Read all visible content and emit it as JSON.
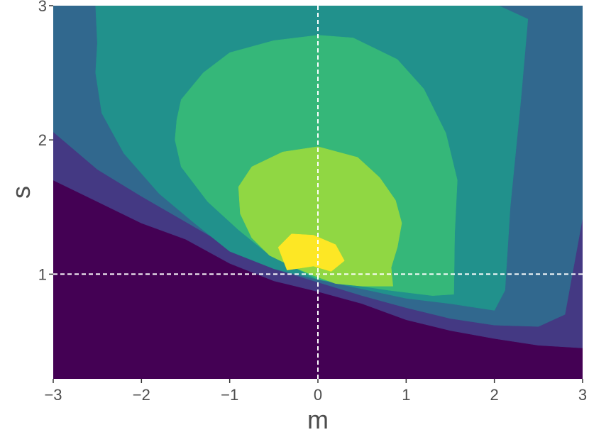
{
  "chart_data": {
    "type": "contour",
    "xlabel": "m",
    "ylabel": "s",
    "xlim": [
      -3,
      3
    ],
    "ylim": [
      0.22,
      3
    ],
    "x_ticks": [
      {
        "value": -3,
        "label": "−3"
      },
      {
        "value": -2,
        "label": "−2"
      },
      {
        "value": -1,
        "label": "−1"
      },
      {
        "value": 0,
        "label": "0"
      },
      {
        "value": 1,
        "label": "1"
      },
      {
        "value": 2,
        "label": "2"
      },
      {
        "value": 3,
        "label": "3"
      }
    ],
    "y_ticks": [
      {
        "value": 1,
        "label": "1"
      },
      {
        "value": 2,
        "label": "2"
      },
      {
        "value": 3,
        "label": "3"
      }
    ],
    "reference_lines": {
      "vertical_x": 0,
      "horizontal_y": 1,
      "style": "dashed",
      "color": "#ffffff"
    },
    "grid": false,
    "colormap": "viridis",
    "levels": [
      {
        "color": "#440154",
        "regions": [
          [
            [
              -3,
              0.22
            ],
            [
              3,
              0.22
            ],
            [
              3,
              3
            ],
            [
              -3,
              3
            ]
          ]
        ]
      },
      {
        "color": "#443983",
        "regions": [
          [
            [
              -3,
              1.7
            ],
            [
              -2.5,
              1.54
            ],
            [
              -2,
              1.38
            ],
            [
              -1.5,
              1.26
            ],
            [
              -1,
              1.08
            ],
            [
              -0.5,
              0.95
            ],
            [
              0,
              0.87
            ],
            [
              0.5,
              0.78
            ],
            [
              1,
              0.66
            ],
            [
              1.5,
              0.58
            ],
            [
              2,
              0.52
            ],
            [
              2.5,
              0.47
            ],
            [
              3,
              0.45
            ],
            [
              3,
              3
            ],
            [
              -3,
              3
            ]
          ]
        ]
      },
      {
        "color": "#31688e",
        "regions": [
          [
            [
              -3,
              2.06
            ],
            [
              -2.5,
              1.78
            ],
            [
              -2,
              1.58
            ],
            [
              -1.5,
              1.39
            ],
            [
              -1,
              1.2
            ],
            [
              -0.5,
              1.04
            ],
            [
              0,
              0.94
            ],
            [
              0.5,
              0.84
            ],
            [
              1,
              0.75
            ],
            [
              1.5,
              0.67
            ],
            [
              2,
              0.62
            ],
            [
              2.5,
              0.61
            ],
            [
              2.8,
              0.7
            ],
            [
              3,
              1.42
            ],
            [
              3,
              3
            ],
            [
              -3,
              3
            ]
          ]
        ]
      },
      {
        "color": "#21918c",
        "regions": [
          [
            [
              -2.52,
              3
            ],
            [
              -2.5,
              2.72
            ],
            [
              -2.52,
              2.5
            ],
            [
              -2.45,
              2.2
            ],
            [
              -2.2,
              1.9
            ],
            [
              -1.8,
              1.6
            ],
            [
              -1.4,
              1.38
            ],
            [
              -1,
              1.17
            ],
            [
              -0.5,
              1.04
            ],
            [
              0,
              0.96
            ],
            [
              0.5,
              0.89
            ],
            [
              1,
              0.82
            ],
            [
              1.5,
              0.78
            ],
            [
              2,
              0.73
            ],
            [
              2.12,
              0.88
            ],
            [
              2.18,
              1.5
            ],
            [
              2.3,
              2.3
            ],
            [
              2.38,
              2.9
            ],
            [
              2.05,
              3
            ]
          ]
        ]
      },
      {
        "color": "#35b779",
        "regions": [
          [
            [
              -1.62,
              2.0
            ],
            [
              -1.6,
              2.15
            ],
            [
              -1.55,
              2.3
            ],
            [
              -1.3,
              2.5
            ],
            [
              -1,
              2.65
            ],
            [
              -0.5,
              2.74
            ],
            [
              0,
              2.78
            ],
            [
              0.4,
              2.76
            ],
            [
              0.9,
              2.6
            ],
            [
              1.2,
              2.38
            ],
            [
              1.45,
              2.05
            ],
            [
              1.58,
              1.7
            ],
            [
              1.55,
              1.3
            ],
            [
              1.54,
              0.85
            ],
            [
              1.3,
              0.84
            ],
            [
              0.8,
              0.88
            ],
            [
              0.3,
              0.93
            ],
            [
              0,
              0.96
            ],
            [
              -0.3,
              1.06
            ],
            [
              -0.6,
              1.17
            ],
            [
              -0.9,
              1.33
            ],
            [
              -1.25,
              1.54
            ],
            [
              -1.55,
              1.8
            ]
          ]
        ]
      },
      {
        "color": "#90d743",
        "regions": [
          [
            [
              -0.9,
              1.65
            ],
            [
              -0.88,
              1.45
            ],
            [
              -0.75,
              1.27
            ],
            [
              -0.55,
              1.14
            ],
            [
              -0.3,
              1.06
            ],
            [
              -0.05,
              0.99
            ],
            [
              0.2,
              0.93
            ],
            [
              0.5,
              0.91
            ],
            [
              0.85,
              0.91
            ],
            [
              0.83,
              1.05
            ],
            [
              0.9,
              1.2
            ],
            [
              0.95,
              1.38
            ],
            [
              0.88,
              1.55
            ],
            [
              0.7,
              1.72
            ],
            [
              0.45,
              1.87
            ],
            [
              0,
              1.95
            ],
            [
              -0.4,
              1.91
            ],
            [
              -0.75,
              1.8
            ]
          ]
        ]
      },
      {
        "color": "#fde725",
        "regions": [
          [
            [
              -0.45,
              1.2
            ],
            [
              -0.35,
              1.03
            ],
            [
              -0.05,
              1.06
            ],
            [
              0.15,
              1.02
            ],
            [
              0.3,
              1.1
            ],
            [
              0.2,
              1.22
            ],
            [
              -0.05,
              1.29
            ],
            [
              -0.3,
              1.3
            ]
          ]
        ]
      }
    ]
  }
}
